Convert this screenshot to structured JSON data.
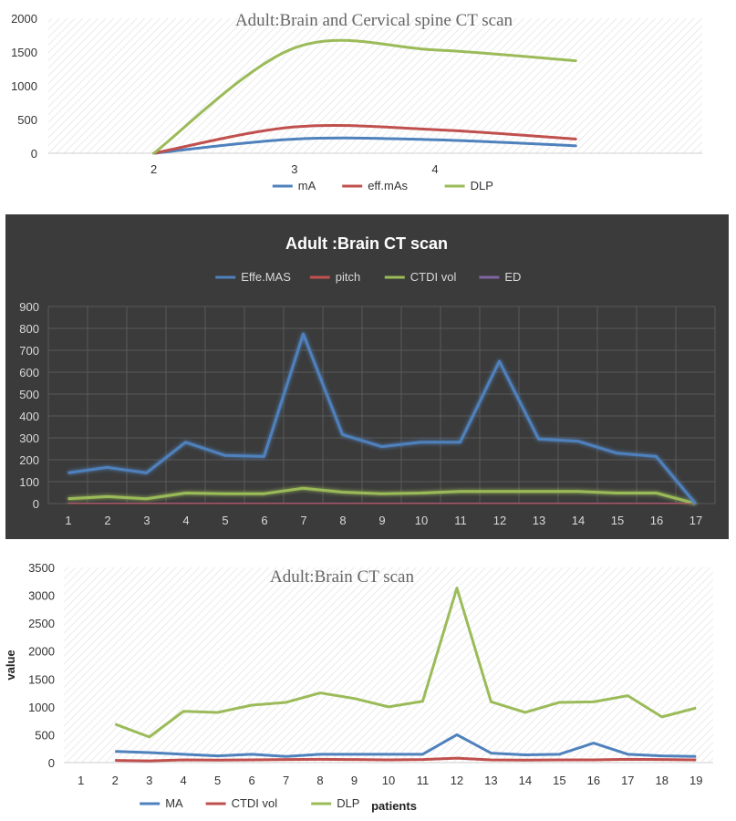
{
  "chart_data": [
    {
      "type": "line",
      "title": "Adult:Brain  and Cervical  spine CT scan",
      "categories": [
        "2",
        "3",
        "4"
      ],
      "x": [
        2,
        3,
        4,
        5
      ],
      "xlim": [
        1.25,
        5.9
      ],
      "ylim": [
        0,
        2000
      ],
      "yticks": [
        0,
        500,
        1000,
        1500,
        2000
      ],
      "xticks": [
        2,
        3,
        4
      ],
      "smooth": true,
      "legend_position": "bottom",
      "series": [
        {
          "name": "mA",
          "color": "#4f81bd",
          "values": [
            0,
            210,
            200,
            110
          ]
        },
        {
          "name": "eff.mAs",
          "color": "#c0504d",
          "values": [
            0,
            390,
            350,
            210
          ]
        },
        {
          "name": "DLP",
          "color": "#9bbb59",
          "values": [
            0,
            1560,
            1530,
            1370
          ]
        }
      ]
    },
    {
      "type": "line",
      "title": "Adult :Brain CT scan",
      "categories": [
        "1",
        "2",
        "3",
        "4",
        "5",
        "6",
        "7",
        "8",
        "9",
        "10",
        "11",
        "12",
        "13",
        "14",
        "15",
        "16",
        "17"
      ],
      "ylim": [
        0,
        900
      ],
      "yticks": [
        0,
        100,
        200,
        300,
        400,
        500,
        600,
        700,
        800,
        900
      ],
      "legend_position": "top",
      "grid": true,
      "series": [
        {
          "name": "Effe.MAS",
          "color": "#4f81bd",
          "values": [
            140,
            165,
            140,
            280,
            220,
            215,
            775,
            315,
            260,
            280,
            280,
            650,
            295,
            285,
            230,
            215,
            0
          ]
        },
        {
          "name": "pitch",
          "color": "#c0504d",
          "values": [
            1,
            1,
            1,
            1,
            1,
            1,
            1,
            1,
            1,
            1,
            1,
            1,
            1,
            1,
            1,
            1,
            0
          ]
        },
        {
          "name": "CTDI vol",
          "color": "#9bbb59",
          "values": [
            22,
            32,
            22,
            48,
            45,
            45,
            70,
            52,
            45,
            48,
            55,
            55,
            55,
            55,
            48,
            48,
            0
          ]
        },
        {
          "name": "ED",
          "color": "#8064a2",
          "values": [
            2,
            2,
            2,
            3,
            3,
            3,
            3,
            3,
            3,
            3,
            3,
            3,
            3,
            3,
            3,
            3,
            0
          ]
        }
      ]
    },
    {
      "type": "line",
      "title": "Adult:Brain CT scan",
      "categories": [
        "1",
        "2",
        "3",
        "4",
        "5",
        "6",
        "7",
        "8",
        "9",
        "10",
        "11",
        "12",
        "13",
        "14",
        "15",
        "16",
        "17",
        "18",
        "19"
      ],
      "ylabel": "value",
      "xlabel": "patients",
      "ylim": [
        0,
        3500
      ],
      "yticks": [
        0,
        500,
        1000,
        1500,
        2000,
        2500,
        3000,
        3500
      ],
      "legend_position": "bottom",
      "series": [
        {
          "name": "MA",
          "color": "#4f81bd",
          "values": [
            null,
            200,
            180,
            150,
            120,
            150,
            110,
            150,
            150,
            150,
            150,
            500,
            170,
            140,
            150,
            350,
            150,
            120,
            110
          ]
        },
        {
          "name": "CTDI vol",
          "color": "#c0504d",
          "values": [
            null,
            40,
            30,
            50,
            45,
            50,
            55,
            60,
            55,
            50,
            55,
            80,
            50,
            45,
            50,
            50,
            60,
            55,
            50
          ]
        },
        {
          "name": "DLP",
          "color": "#9bbb59",
          "values": [
            null,
            690,
            460,
            920,
            900,
            1030,
            1080,
            1250,
            1150,
            1000,
            1100,
            3130,
            1090,
            900,
            1080,
            1090,
            1200,
            820,
            980
          ]
        }
      ]
    }
  ]
}
